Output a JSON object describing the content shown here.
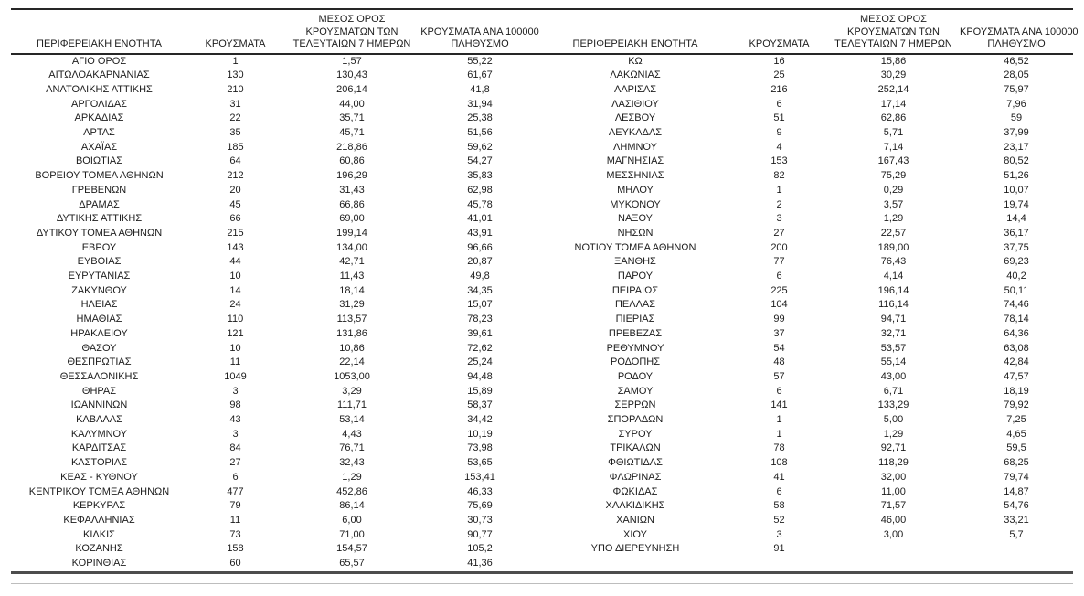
{
  "table": {
    "headers": {
      "region": "ΠΕΡΙΦΕΡΕΙΑΚΗ ΕΝΟΤΗΤΑ",
      "cases": "ΚΡΟΥΣΜΑΤΑ",
      "avg7": "ΜΕΣΟΣ ΟΡΟΣ\nΚΡΟΥΣΜΑΤΩΝ ΤΩΝ\nΤΕΛΕΥΤΑΙΩΝ 7 ΗΜΕΡΩΝ",
      "per100k": "ΚΡΟΥΣΜΑΤΑ ΑΝΑ 100000\nΠΛΗΘΥΣΜΟ"
    },
    "left_rows": [
      [
        "ΑΓΙΟ ΟΡΟΣ",
        "1",
        "1,57",
        "55,22"
      ],
      [
        "ΑΙΤΩΛΟΑΚΑΡΝΑΝΙΑΣ",
        "130",
        "130,43",
        "61,67"
      ],
      [
        "ΑΝΑΤΟΛΙΚΗΣ ΑΤΤΙΚΗΣ",
        "210",
        "206,14",
        "41,8"
      ],
      [
        "ΑΡΓΟΛΙΔΑΣ",
        "31",
        "44,00",
        "31,94"
      ],
      [
        "ΑΡΚΑΔΙΑΣ",
        "22",
        "35,71",
        "25,38"
      ],
      [
        "ΑΡΤΑΣ",
        "35",
        "45,71",
        "51,56"
      ],
      [
        "ΑΧΑΪΑΣ",
        "185",
        "218,86",
        "59,62"
      ],
      [
        "ΒΟΙΩΤΙΑΣ",
        "64",
        "60,86",
        "54,27"
      ],
      [
        "ΒΟΡΕΙΟΥ ΤΟΜΕΑ ΑΘΗΝΩΝ",
        "212",
        "196,29",
        "35,83"
      ],
      [
        "ΓΡΕΒΕΝΩΝ",
        "20",
        "31,43",
        "62,98"
      ],
      [
        "ΔΡΑΜΑΣ",
        "45",
        "66,86",
        "45,78"
      ],
      [
        "ΔΥΤΙΚΗΣ ΑΤΤΙΚΗΣ",
        "66",
        "69,00",
        "41,01"
      ],
      [
        "ΔΥΤΙΚΟΥ ΤΟΜΕΑ ΑΘΗΝΩΝ",
        "215",
        "199,14",
        "43,91"
      ],
      [
        "ΕΒΡΟΥ",
        "143",
        "134,00",
        "96,66"
      ],
      [
        "ΕΥΒΟΙΑΣ",
        "44",
        "42,71",
        "20,87"
      ],
      [
        "ΕΥΡΥΤΑΝΙΑΣ",
        "10",
        "11,43",
        "49,8"
      ],
      [
        "ΖΑΚΥΝΘΟΥ",
        "14",
        "18,14",
        "34,35"
      ],
      [
        "ΗΛΕΙΑΣ",
        "24",
        "31,29",
        "15,07"
      ],
      [
        "ΗΜΑΘΙΑΣ",
        "110",
        "113,57",
        "78,23"
      ],
      [
        "ΗΡΑΚΛΕΙΟΥ",
        "121",
        "131,86",
        "39,61"
      ],
      [
        "ΘΑΣΟΥ",
        "10",
        "10,86",
        "72,62"
      ],
      [
        "ΘΕΣΠΡΩΤΙΑΣ",
        "11",
        "22,14",
        "25,24"
      ],
      [
        "ΘΕΣΣΑΛΟΝΙΚΗΣ",
        "1049",
        "1053,00",
        "94,48"
      ],
      [
        "ΘΗΡΑΣ",
        "3",
        "3,29",
        "15,89"
      ],
      [
        "ΙΩΑΝΝΙΝΩΝ",
        "98",
        "111,71",
        "58,37"
      ],
      [
        "ΚΑΒΑΛΑΣ",
        "43",
        "53,14",
        "34,42"
      ],
      [
        "ΚΑΛΥΜΝΟΥ",
        "3",
        "4,43",
        "10,19"
      ],
      [
        "ΚΑΡΔΙΤΣΑΣ",
        "84",
        "76,71",
        "73,98"
      ],
      [
        "ΚΑΣΤΟΡΙΑΣ",
        "27",
        "32,43",
        "53,65"
      ],
      [
        "ΚΕΑΣ - ΚΥΘΝΟΥ",
        "6",
        "1,29",
        "153,41"
      ],
      [
        "ΚΕΝΤΡΙΚΟΥ ΤΟΜΕΑ ΑΘΗΝΩΝ",
        "477",
        "452,86",
        "46,33"
      ],
      [
        "ΚΕΡΚΥΡΑΣ",
        "79",
        "86,14",
        "75,69"
      ],
      [
        "ΚΕΦΑΛΛΗΝΙΑΣ",
        "11",
        "6,00",
        "30,73"
      ],
      [
        "ΚΙΛΚΙΣ",
        "73",
        "71,00",
        "90,77"
      ],
      [
        "ΚΟΖΑΝΗΣ",
        "158",
        "154,57",
        "105,2"
      ],
      [
        "ΚΟΡΙΝΘΙΑΣ",
        "60",
        "65,57",
        "41,36"
      ]
    ],
    "right_rows": [
      [
        "ΚΩ",
        "16",
        "15,86",
        "46,52"
      ],
      [
        "ΛΑΚΩΝΙΑΣ",
        "25",
        "30,29",
        "28,05"
      ],
      [
        "ΛΑΡΙΣΑΣ",
        "216",
        "252,14",
        "75,97"
      ],
      [
        "ΛΑΣΙΘΙΟΥ",
        "6",
        "17,14",
        "7,96"
      ],
      [
        "ΛΕΣΒΟΥ",
        "51",
        "62,86",
        "59"
      ],
      [
        "ΛΕΥΚΑΔΑΣ",
        "9",
        "5,71",
        "37,99"
      ],
      [
        "ΛΗΜΝΟΥ",
        "4",
        "7,14",
        "23,17"
      ],
      [
        "ΜΑΓΝΗΣΙΑΣ",
        "153",
        "167,43",
        "80,52"
      ],
      [
        "ΜΕΣΣΗΝΙΑΣ",
        "82",
        "75,29",
        "51,26"
      ],
      [
        "ΜΗΛΟΥ",
        "1",
        "0,29",
        "10,07"
      ],
      [
        "ΜΥΚΟΝΟΥ",
        "2",
        "3,57",
        "19,74"
      ],
      [
        "ΝΑΞΟΥ",
        "3",
        "1,29",
        "14,4"
      ],
      [
        "ΝΗΣΩΝ",
        "27",
        "22,57",
        "36,17"
      ],
      [
        "ΝΟΤΙΟΥ ΤΟΜΕΑ ΑΘΗΝΩΝ",
        "200",
        "189,00",
        "37,75"
      ],
      [
        "ΞΑΝΘΗΣ",
        "77",
        "76,43",
        "69,23"
      ],
      [
        "ΠΑΡΟΥ",
        "6",
        "4,14",
        "40,2"
      ],
      [
        "ΠΕΙΡΑΙΩΣ",
        "225",
        "196,14",
        "50,11"
      ],
      [
        "ΠΕΛΛΑΣ",
        "104",
        "116,14",
        "74,46"
      ],
      [
        "ΠΙΕΡΙΑΣ",
        "99",
        "94,71",
        "78,14"
      ],
      [
        "ΠΡΕΒΕΖΑΣ",
        "37",
        "32,71",
        "64,36"
      ],
      [
        "ΡΕΘΥΜΝΟΥ",
        "54",
        "53,57",
        "63,08"
      ],
      [
        "ΡΟΔΟΠΗΣ",
        "48",
        "55,14",
        "42,84"
      ],
      [
        "ΡΟΔΟΥ",
        "57",
        "43,00",
        "47,57"
      ],
      [
        "ΣΑΜΟΥ",
        "6",
        "6,71",
        "18,19"
      ],
      [
        "ΣΕΡΡΩΝ",
        "141",
        "133,29",
        "79,92"
      ],
      [
        "ΣΠΟΡΑΔΩΝ",
        "1",
        "5,00",
        "7,25"
      ],
      [
        "ΣΥΡΟΥ",
        "1",
        "1,29",
        "4,65"
      ],
      [
        "ΤΡΙΚΑΛΩΝ",
        "78",
        "92,71",
        "59,5"
      ],
      [
        "ΦΘΙΩΤΙΔΑΣ",
        "108",
        "118,29",
        "68,25"
      ],
      [
        "ΦΛΩΡΙΝΑΣ",
        "41",
        "32,00",
        "79,74"
      ],
      [
        "ΦΩΚΙΔΑΣ",
        "6",
        "11,00",
        "14,87"
      ],
      [
        "ΧΑΛΚΙΔΙΚΗΣ",
        "58",
        "71,57",
        "54,76"
      ],
      [
        "ΧΑΝΙΩΝ",
        "52",
        "46,00",
        "33,21"
      ],
      [
        "ΧΙΟΥ",
        "3",
        "3,00",
        "5,7"
      ],
      [
        "ΥΠΟ ΔΙΕΡΕΥΝΗΣΗ",
        "91",
        "",
        ""
      ]
    ],
    "colors": {
      "text": "#1c1c1c",
      "heavy_rule": "#262626",
      "bottom_rule": "#4d4d4d",
      "thin_rule": "#bdbdbd",
      "background": "#ffffff"
    }
  }
}
